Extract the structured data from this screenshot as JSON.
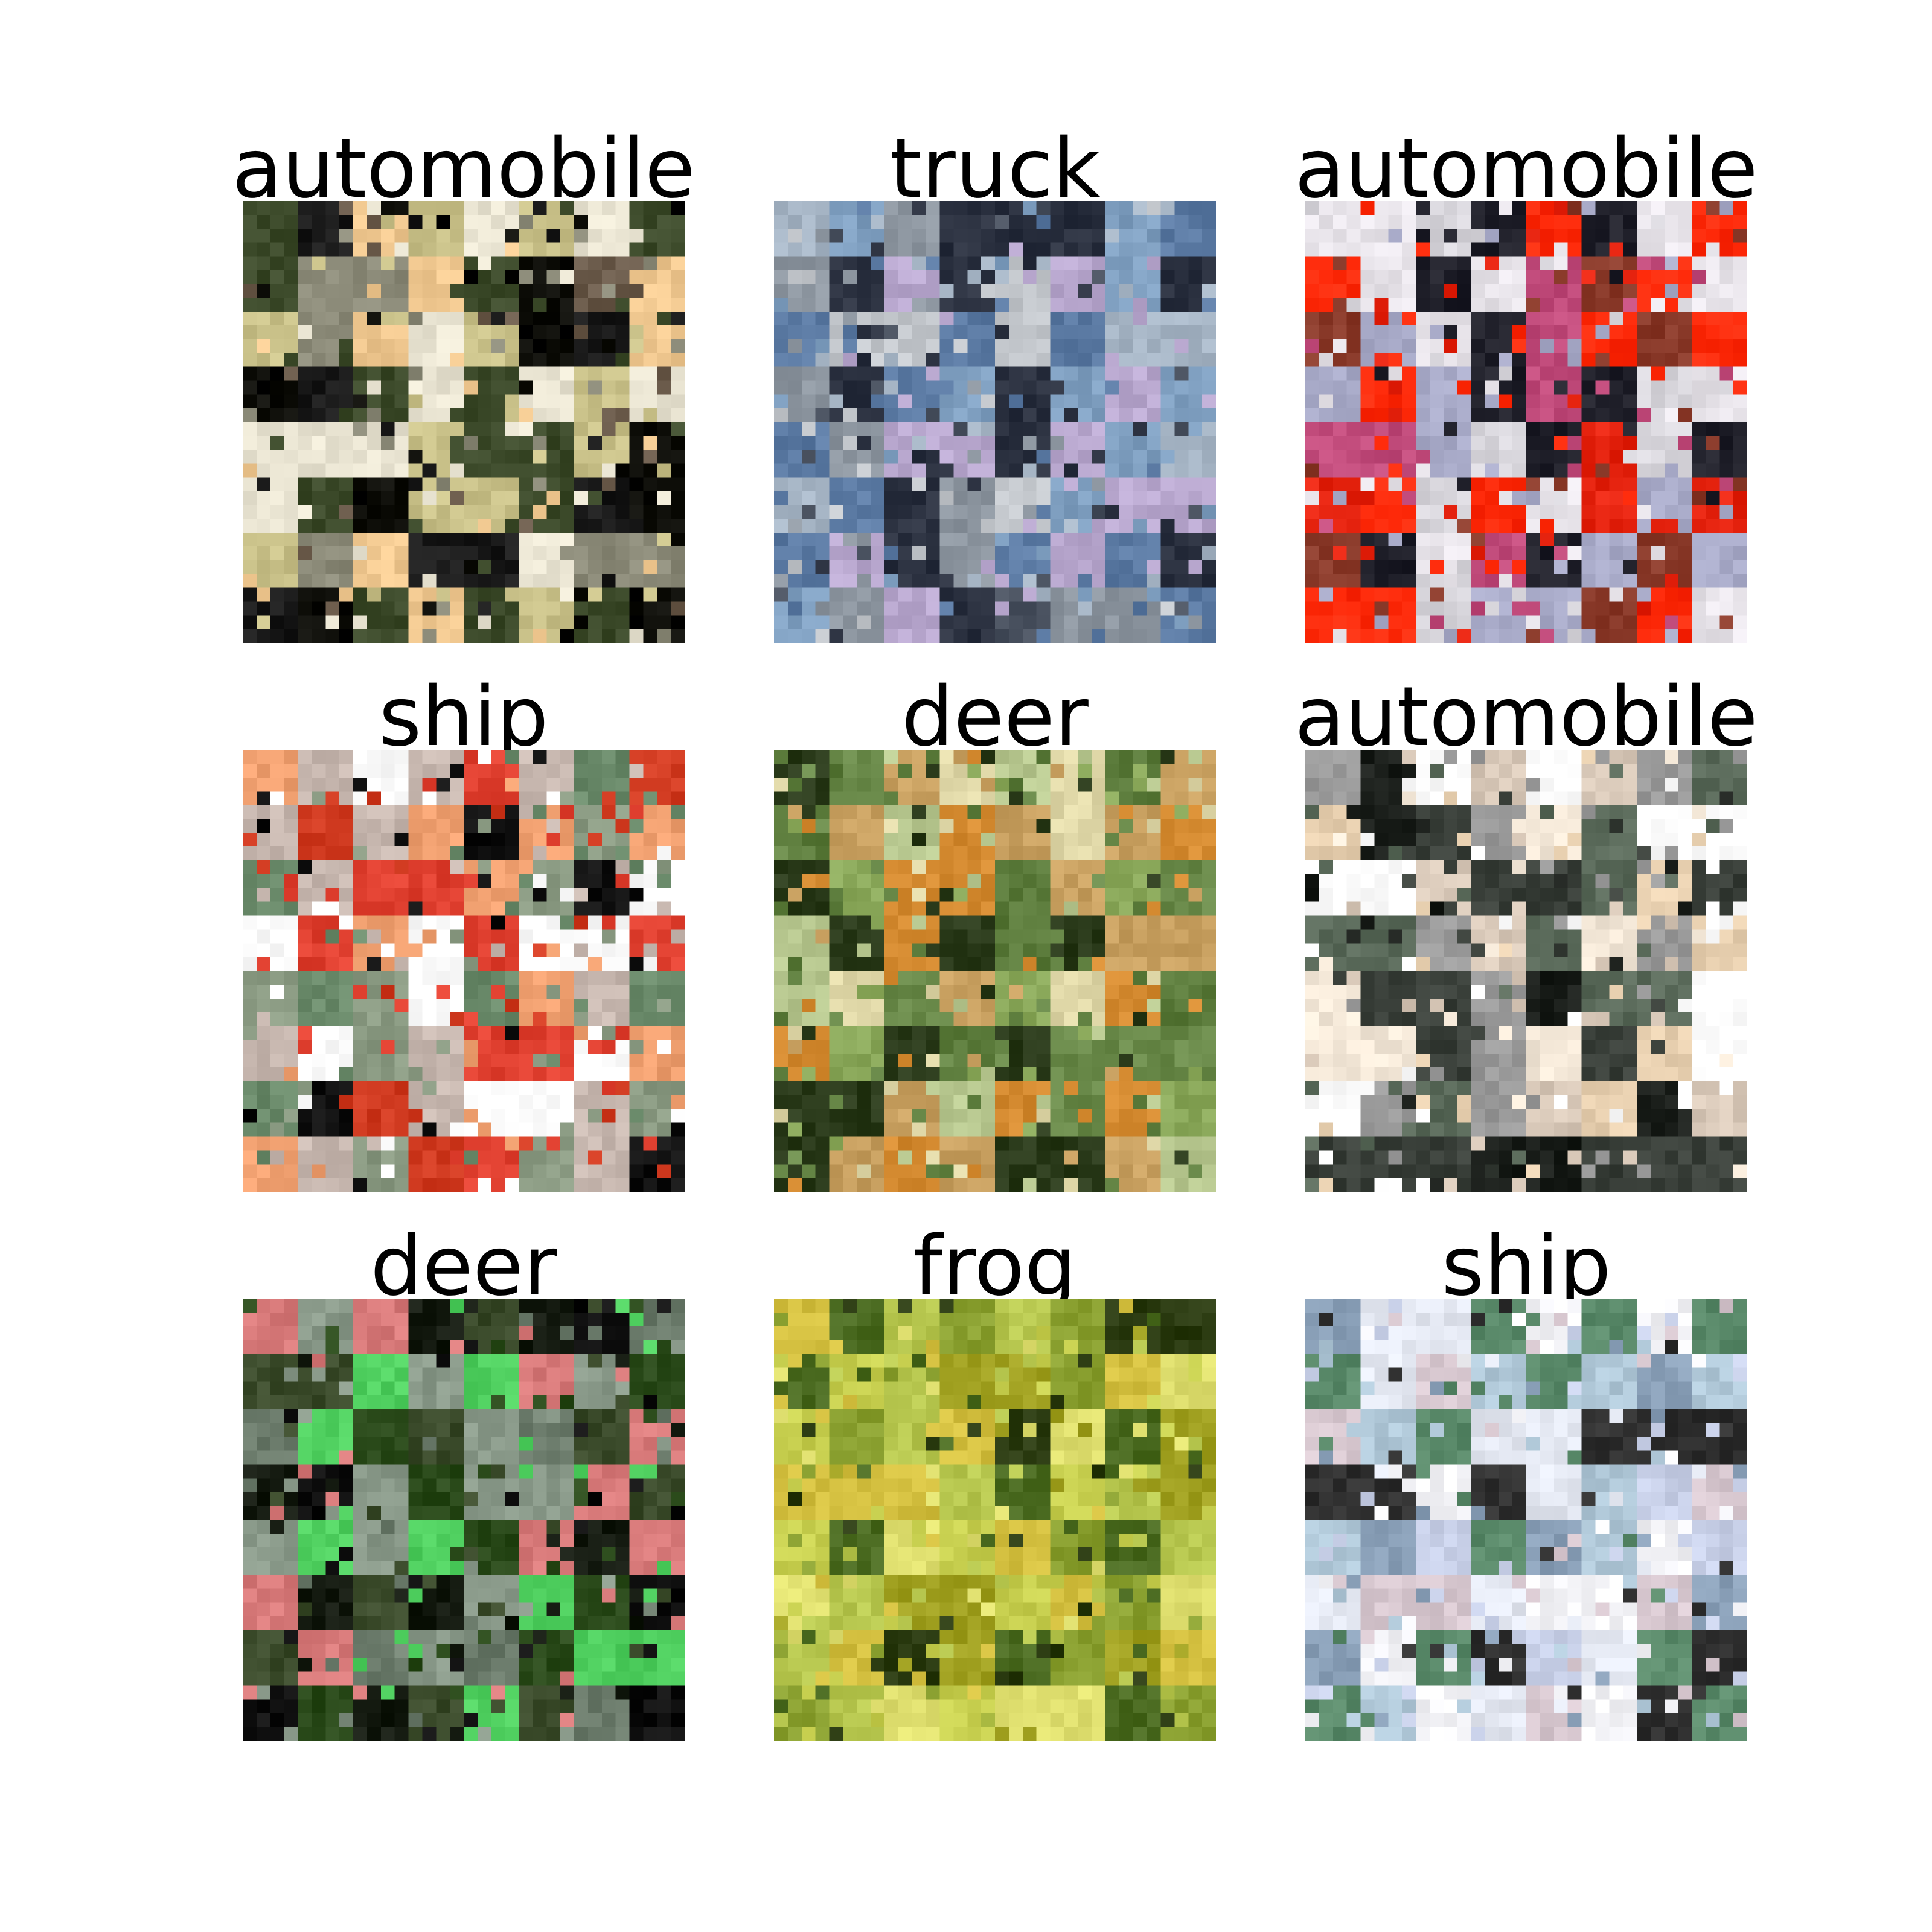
{
  "grid": {
    "tiles": [
      {
        "label": "automobile",
        "description_icon": "generated-car-image",
        "palette": [
          "#0d0d08",
          "#3c4a2a",
          "#c9c189",
          "#f0c890",
          "#8b8a78",
          "#e9e4d2",
          "#1a1a1a",
          "#6a5a4a"
        ]
      },
      {
        "label": "truck",
        "description_icon": "generated-truck-image",
        "palette": [
          "#7f9fc0",
          "#5b7aa3",
          "#a6b5c5",
          "#2b3140",
          "#b9a8cf",
          "#8d96a0",
          "#4a5260",
          "#c3c7cc"
        ]
      },
      {
        "label": "automobile",
        "description_icon": "generated-car-image",
        "palette": [
          "#e5230f",
          "#ff2a0a",
          "#a8aac8",
          "#e8e4ea",
          "#20202a",
          "#c04a7a",
          "#d8d6dc",
          "#8a3a2a"
        ]
      },
      {
        "label": "ship",
        "description_icon": "generated-ship-image",
        "palette": [
          "#ffffff",
          "#8a9a82",
          "#d03a20",
          "#f0a070",
          "#111111",
          "#c8b8b0",
          "#6a8a6a",
          "#e04030"
        ]
      },
      {
        "label": "deer",
        "description_icon": "generated-deer-image",
        "palette": [
          "#8aa85a",
          "#5a7a3a",
          "#c8a060",
          "#d48a30",
          "#2a3a1a",
          "#b8c890",
          "#e0d8a8",
          "#6a8a4a"
        ]
      },
      {
        "label": "automobile",
        "description_icon": "generated-car-image",
        "palette": [
          "#f4e8d8",
          "#1a1e1a",
          "#5a6a5a",
          "#ffffff",
          "#9a9a9a",
          "#e8d0b0",
          "#3a403a",
          "#d8c8b8"
        ]
      },
      {
        "label": "deer",
        "description_icon": "generated-deer-image",
        "palette": [
          "#141a10",
          "#3a4a2a",
          "#6a7a6a",
          "#2a4a1a",
          "#8a9a8a",
          "#d87a7a",
          "#50d060",
          "#101010"
        ]
      },
      {
        "label": "frog",
        "description_icon": "generated-frog-image",
        "palette": [
          "#c8d050",
          "#8aa030",
          "#2a3a10",
          "#e0e070",
          "#a0a020",
          "#d4c040",
          "#4a6a20",
          "#b8c850"
        ]
      },
      {
        "label": "ship",
        "description_icon": "generated-ship-image",
        "palette": [
          "#e4e8f2",
          "#c8d0e8",
          "#5a8a6a",
          "#303030",
          "#b0c8d8",
          "#f4f4f8",
          "#8aa0b8",
          "#d8c8d0"
        ]
      }
    ]
  }
}
